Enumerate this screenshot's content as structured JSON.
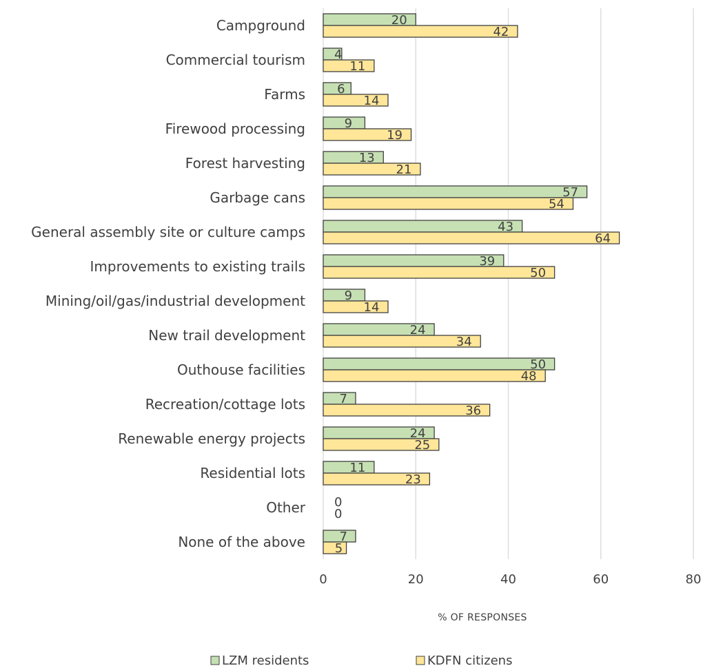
{
  "chart_data": {
    "type": "bar",
    "orientation": "horizontal",
    "categories": [
      "Campground",
      "Commercial tourism",
      "Farms",
      "Firewood processing",
      "Forest harvesting",
      "Garbage cans",
      "General assembly site or culture camps",
      "Improvements to existing trails",
      "Mining/oil/gas/industrial development",
      "New trail development",
      "Outhouse facilities",
      "Recreation/cottage lots",
      "Renewable energy projects",
      "Residential lots",
      "Other",
      "None of the above"
    ],
    "series": [
      {
        "name": "LZM residents",
        "color": "#c6e0b4",
        "values": [
          20,
          4,
          6,
          9,
          13,
          57,
          43,
          39,
          9,
          24,
          50,
          7,
          24,
          11,
          0,
          7
        ]
      },
      {
        "name": "KDFN citizens",
        "color": "#ffe699",
        "values": [
          42,
          11,
          14,
          19,
          21,
          54,
          64,
          50,
          14,
          34,
          48,
          36,
          25,
          23,
          0,
          5
        ]
      }
    ],
    "xlabel": "% OF RESPONSES",
    "xlim": [
      0,
      80
    ],
    "xticks": [
      0,
      20,
      40,
      60,
      80
    ],
    "grid": true,
    "legend_position": "bottom",
    "bar_outline": "#404040",
    "gridline_color": "#d9d9d9"
  }
}
